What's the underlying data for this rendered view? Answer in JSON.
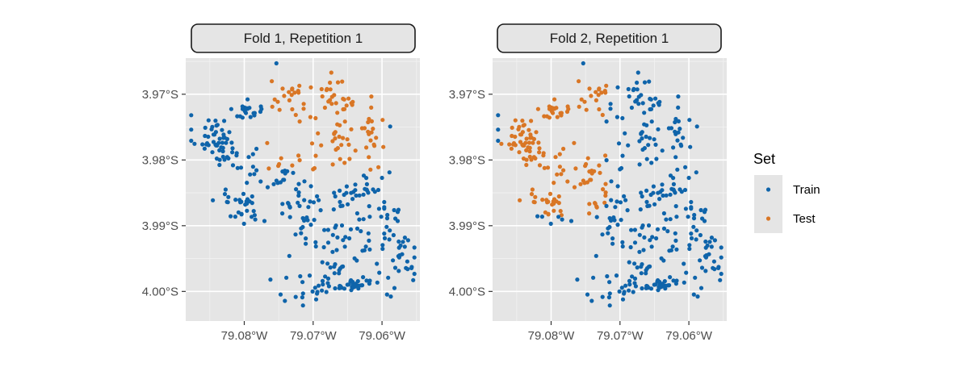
{
  "chart_data": {
    "type": "scatter",
    "facets": [
      {
        "label": "Fold 1, Repetition 1",
        "test_region": {
          "description_ranges": [
            {
              "x": [
                -79.077,
                -79.059
              ],
              "y": [
                -3.9815,
                -3.966
              ]
            }
          ]
        }
      },
      {
        "label": "Fold 2, Repetition 1",
        "test_region": {
          "description_ranges": [
            {
              "x": [
                -79.0875,
                -79.072
              ],
              "y": [
                -3.9885,
                -3.966
              ]
            }
          ]
        }
      }
    ],
    "x_ticks": [
      {
        "value": -79.08,
        "label": "79.08°W"
      },
      {
        "value": -79.07,
        "label": "79.07°W"
      },
      {
        "value": -79.06,
        "label": "79.06°W"
      }
    ],
    "y_ticks": [
      {
        "value": -3.97,
        "label": "3.97°S"
      },
      {
        "value": -3.98,
        "label": "3.98°S"
      },
      {
        "value": -3.99,
        "label": "3.99°S"
      },
      {
        "value": -4.0,
        "label": "4.00°S"
      }
    ],
    "xlim": [
      -79.0885,
      -79.0545
    ],
    "ylim": [
      -4.0045,
      -3.9645
    ],
    "grid": true,
    "legend": {
      "title": "Set",
      "position": "right",
      "entries": [
        {
          "name": "Train",
          "color": "#0F64AA"
        },
        {
          "name": "Test",
          "color": "#D97625"
        }
      ]
    },
    "clusters": [
      {
        "x": -79.0845,
        "y": -3.9765,
        "n": 45,
        "spread": [
          0.0018,
          0.002
        ]
      },
      {
        "x": -79.0795,
        "y": -3.9725,
        "n": 22,
        "spread": [
          0.0012,
          0.0008
        ]
      },
      {
        "x": -79.081,
        "y": -3.98,
        "n": 18,
        "spread": [
          0.0025,
          0.0018
        ]
      },
      {
        "x": -79.0805,
        "y": -3.9865,
        "n": 30,
        "spread": [
          0.0022,
          0.0018
        ]
      },
      {
        "x": -79.074,
        "y": -3.982,
        "n": 28,
        "spread": [
          0.0025,
          0.002
        ]
      },
      {
        "x": -79.07,
        "y": -3.988,
        "n": 45,
        "spread": [
          0.0035,
          0.003
        ]
      },
      {
        "x": -79.062,
        "y": -3.985,
        "n": 35,
        "spread": [
          0.0025,
          0.003
        ]
      },
      {
        "x": -79.059,
        "y": -3.992,
        "n": 35,
        "spread": [
          0.003,
          0.003
        ]
      },
      {
        "x": -79.066,
        "y": -3.995,
        "n": 30,
        "spread": [
          0.003,
          0.0025
        ]
      },
      {
        "x": -79.064,
        "y": -3.999,
        "n": 30,
        "spread": [
          0.001,
          0.0007
        ]
      },
      {
        "x": -79.07,
        "y": -3.9995,
        "n": 25,
        "spread": [
          0.003,
          0.002
        ]
      },
      {
        "x": -79.0575,
        "y": -3.997,
        "n": 20,
        "spread": [
          0.002,
          0.0025
        ]
      },
      {
        "x": -79.0735,
        "y": -3.9695,
        "n": 22,
        "spread": [
          0.002,
          0.002
        ]
      },
      {
        "x": -79.066,
        "y": -3.97,
        "n": 24,
        "spread": [
          0.002,
          0.002
        ]
      },
      {
        "x": -79.0665,
        "y": -3.9775,
        "n": 28,
        "spread": [
          0.0025,
          0.0025
        ]
      },
      {
        "x": -79.0615,
        "y": -3.975,
        "n": 20,
        "spread": [
          0.0018,
          0.003
        ]
      }
    ]
  }
}
